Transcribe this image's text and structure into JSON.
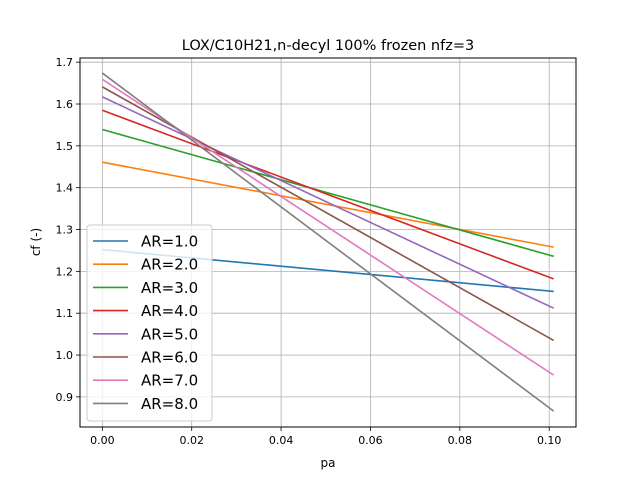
{
  "chart_data": {
    "type": "line",
    "title": "LOX/C10H21,n-decyl 100% frozen nfz=3",
    "xlabel": "pa",
    "ylabel": "cf (-)",
    "xlim": [
      -0.005,
      0.106
    ],
    "ylim": [
      0.828,
      1.71
    ],
    "xticks": [
      0.0,
      0.02,
      0.04,
      0.06,
      0.08,
      0.1
    ],
    "xtick_labels": [
      "0.00",
      "0.02",
      "0.04",
      "0.06",
      "0.08",
      "0.10"
    ],
    "yticks": [
      0.9,
      1.0,
      1.1,
      1.2,
      1.3,
      1.4,
      1.5,
      1.6,
      1.7
    ],
    "ytick_labels": [
      "0.9",
      "1.0",
      "1.1",
      "1.2",
      "1.3",
      "1.4",
      "1.5",
      "1.6",
      "1.7"
    ],
    "grid": true,
    "legend_position": "lower-left",
    "series": [
      {
        "name": "AR=1.0",
        "color": "#1f77b4",
        "x": [
          0.0,
          0.101
        ],
        "y": [
          1.252,
          1.152
        ]
      },
      {
        "name": "AR=2.0",
        "color": "#ff7f0e",
        "x": [
          0.0,
          0.101
        ],
        "y": [
          1.461,
          1.258
        ]
      },
      {
        "name": "AR=3.0",
        "color": "#2ca02c",
        "x": [
          0.0,
          0.101
        ],
        "y": [
          1.539,
          1.236
        ]
      },
      {
        "name": "AR=4.0",
        "color": "#d62728",
        "x": [
          0.0,
          0.101
        ],
        "y": [
          1.585,
          1.182
        ]
      },
      {
        "name": "AR=5.0",
        "color": "#9467bd",
        "x": [
          0.0,
          0.101
        ],
        "y": [
          1.617,
          1.112
        ]
      },
      {
        "name": "AR=6.0",
        "color": "#8c564b",
        "x": [
          0.0,
          0.101
        ],
        "y": [
          1.641,
          1.035
        ]
      },
      {
        "name": "AR=7.0",
        "color": "#e377c2",
        "x": [
          0.0,
          0.101
        ],
        "y": [
          1.659,
          0.952
        ]
      },
      {
        "name": "AR=8.0",
        "color": "#7f7f7f",
        "x": [
          0.0,
          0.101
        ],
        "y": [
          1.674,
          0.866
        ]
      }
    ]
  }
}
